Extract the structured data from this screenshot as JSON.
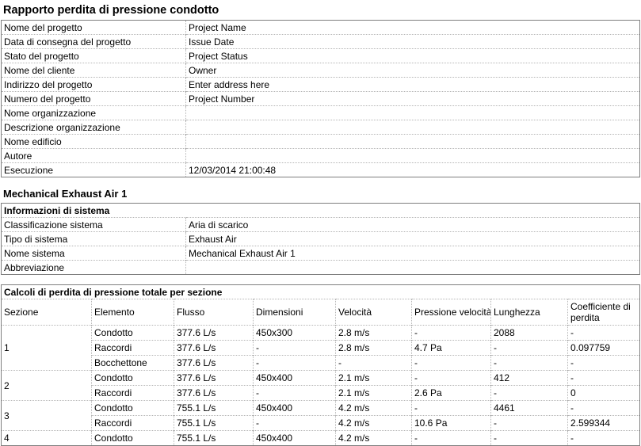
{
  "page_title": "Rapporto perdita di pressione condotto",
  "project_info": {
    "rows": [
      {
        "label": "Nome del progetto",
        "value": "Project Name"
      },
      {
        "label": "Data di consegna del progetto",
        "value": "Issue Date"
      },
      {
        "label": "Stato del progetto",
        "value": "Project Status"
      },
      {
        "label": "Nome del cliente",
        "value": "Owner"
      },
      {
        "label": "Indirizzo del progetto",
        "value": "Enter address here"
      },
      {
        "label": "Numero del progetto",
        "value": "Project Number"
      },
      {
        "label": "Nome organizzazione",
        "value": ""
      },
      {
        "label": "Descrizione organizzazione",
        "value": ""
      },
      {
        "label": "Nome edificio",
        "value": ""
      },
      {
        "label": "Autore",
        "value": ""
      },
      {
        "label": "Esecuzione",
        "value": "12/03/2014 21:00:48"
      }
    ]
  },
  "system_section": {
    "heading": "Mechanical Exhaust Air 1",
    "table_title": "Informazioni di sistema",
    "rows": [
      {
        "label": "Classificazione sistema",
        "value": "Aria di scarico"
      },
      {
        "label": "Tipo di sistema",
        "value": "Exhaust Air"
      },
      {
        "label": "Nome sistema",
        "value": "Mechanical Exhaust Air 1"
      },
      {
        "label": "Abbreviazione",
        "value": ""
      }
    ]
  },
  "calc_table": {
    "title": "Calcoli di perdita di pressione totale per sezione",
    "columns": [
      "Sezione",
      "Elemento",
      "Flusso",
      "Dimensioni",
      "Velocità",
      "Pressione velocità",
      "Lunghezza",
      "Coefficiente di perdita"
    ],
    "sections": [
      {
        "section": "1",
        "rows": [
          [
            "Condotto",
            "377.6 L/s",
            "450x300",
            "2.8 m/s",
            "-",
            "2088",
            "-"
          ],
          [
            "Raccordi",
            "377.6 L/s",
            "-",
            "2.8 m/s",
            "4.7 Pa",
            "-",
            "0.097759"
          ],
          [
            "Bocchettone",
            "377.6 L/s",
            "-",
            "-",
            "-",
            "-",
            "-"
          ]
        ]
      },
      {
        "section": "2",
        "rows": [
          [
            "Condotto",
            "377.6 L/s",
            "450x400",
            "2.1 m/s",
            "-",
            "412",
            "-"
          ],
          [
            "Raccordi",
            "377.6 L/s",
            "-",
            "2.1 m/s",
            "2.6 Pa",
            "-",
            "0"
          ]
        ]
      },
      {
        "section": "3",
        "rows": [
          [
            "Condotto",
            "755.1 L/s",
            "450x400",
            "4.2 m/s",
            "-",
            "4461",
            "-"
          ],
          [
            "Raccordi",
            "755.1 L/s",
            "-",
            "4.2 m/s",
            "10.6 Pa",
            "-",
            "2.599344"
          ]
        ]
      },
      {
        "section": "4",
        "rows": [
          [
            "Condotto",
            "755.1 L/s",
            "450x400",
            "4.2 m/s",
            "-",
            "-",
            "-"
          ]
        ]
      }
    ]
  }
}
